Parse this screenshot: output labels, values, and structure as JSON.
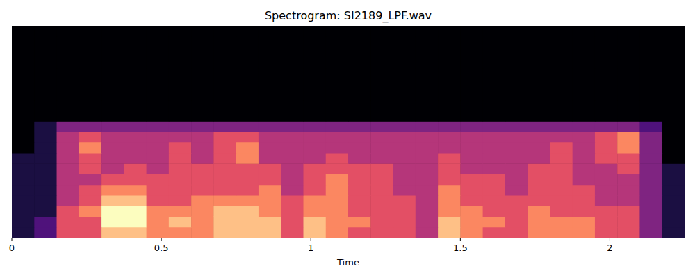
{
  "chart_data": {
    "type": "heatmap",
    "title": "Spectrogram: SI2189_LPF.wav",
    "x_label": "Time",
    "xlim": [
      0,
      2.25
    ],
    "xticks": [
      0,
      0.5,
      1,
      1.5,
      2
    ],
    "ylim": [
      0,
      20
    ],
    "tick_labels": "x",
    "color": "magma",
    "cells": [
      [
        1,
        2,
        5,
        5,
        7,
        7,
        6,
        6,
        6,
        7,
        7,
        7,
        5,
        7,
        6,
        5,
        5,
        5,
        4,
        7,
        6,
        5,
        5,
        6,
        6,
        6,
        5,
        5,
        3,
        1
      ],
      [
        1,
        2,
        5,
        5,
        8,
        8,
        6,
        7,
        6,
        7,
        7,
        7,
        5,
        7,
        6,
        6,
        5,
        5,
        4,
        7,
        6,
        6,
        5,
        6,
        6,
        6,
        5,
        5,
        3,
        1
      ],
      [
        1,
        1,
        5,
        6,
        8,
        8,
        6,
        6,
        6,
        7,
        7,
        6,
        5,
        6,
        6,
        5,
        5,
        5,
        4,
        6,
        6,
        5,
        5,
        6,
        5,
        5,
        5,
        5,
        3,
        1
      ],
      [
        1,
        1,
        4,
        5,
        7,
        7,
        5,
        5,
        6,
        6,
        6,
        6,
        5,
        6,
        6,
        5,
        5,
        5,
        4,
        6,
        5,
        5,
        5,
        5,
        5,
        5,
        4,
        4,
        3,
        1
      ],
      [
        1,
        1,
        4,
        5,
        6,
        6,
        5,
        5,
        5,
        5,
        5,
        6,
        4,
        5,
        6,
        5,
        5,
        4,
        4,
        6,
        5,
        5,
        4,
        5,
        5,
        5,
        4,
        4,
        3,
        1
      ],
      [
        1,
        1,
        4,
        4,
        5,
        5,
        5,
        5,
        5,
        5,
        5,
        5,
        4,
        5,
        6,
        5,
        5,
        4,
        4,
        5,
        5,
        5,
        4,
        5,
        5,
        4,
        4,
        4,
        3,
        1
      ],
      [
        1,
        1,
        4,
        5,
        4,
        5,
        4,
        5,
        5,
        5,
        5,
        5,
        4,
        5,
        5,
        5,
        5,
        4,
        4,
        5,
        4,
        4,
        4,
        5,
        5,
        4,
        4,
        5,
        3,
        1
      ],
      [
        1,
        1,
        4,
        5,
        4,
        4,
        4,
        5,
        4,
        5,
        6,
        4,
        4,
        4,
        5,
        4,
        4,
        4,
        4,
        5,
        4,
        4,
        4,
        4,
        5,
        4,
        5,
        5,
        3,
        0
      ],
      [
        0,
        1,
        4,
        6,
        4,
        4,
        4,
        5,
        4,
        5,
        6,
        4,
        4,
        4,
        4,
        4,
        4,
        4,
        4,
        4,
        4,
        4,
        4,
        4,
        5,
        4,
        5,
        6,
        3,
        0
      ],
      [
        0,
        1,
        4,
        5,
        4,
        4,
        4,
        4,
        4,
        5,
        5,
        4,
        4,
        4,
        4,
        4,
        4,
        4,
        4,
        4,
        4,
        4,
        4,
        4,
        4,
        4,
        5,
        6,
        3,
        0
      ],
      [
        0,
        1,
        3,
        3,
        3,
        3,
        3,
        3,
        3,
        3,
        3,
        3,
        3,
        3,
        3,
        3,
        3,
        3,
        3,
        3,
        3,
        3,
        3,
        3,
        3,
        3,
        3,
        3,
        2,
        0
      ],
      [
        0,
        0,
        0,
        0,
        0,
        0,
        0,
        0,
        0,
        0,
        0,
        0,
        0,
        0,
        0,
        0,
        0,
        0,
        0,
        0,
        0,
        0,
        0,
        0,
        0,
        0,
        0,
        0,
        0,
        0
      ],
      [
        0,
        0,
        0,
        0,
        0,
        0,
        0,
        0,
        0,
        0,
        0,
        0,
        0,
        0,
        0,
        0,
        0,
        0,
        0,
        0,
        0,
        0,
        0,
        0,
        0,
        0,
        0,
        0,
        0,
        0
      ],
      [
        0,
        0,
        0,
        0,
        0,
        0,
        0,
        0,
        0,
        0,
        0,
        0,
        0,
        0,
        0,
        0,
        0,
        0,
        0,
        0,
        0,
        0,
        0,
        0,
        0,
        0,
        0,
        0,
        0,
        0
      ],
      [
        0,
        0,
        0,
        0,
        0,
        0,
        0,
        0,
        0,
        0,
        0,
        0,
        0,
        0,
        0,
        0,
        0,
        0,
        0,
        0,
        0,
        0,
        0,
        0,
        0,
        0,
        0,
        0,
        0,
        0
      ],
      [
        0,
        0,
        0,
        0,
        0,
        0,
        0,
        0,
        0,
        0,
        0,
        0,
        0,
        0,
        0,
        0,
        0,
        0,
        0,
        0,
        0,
        0,
        0,
        0,
        0,
        0,
        0,
        0,
        0,
        0
      ],
      [
        0,
        0,
        0,
        0,
        0,
        0,
        0,
        0,
        0,
        0,
        0,
        0,
        0,
        0,
        0,
        0,
        0,
        0,
        0,
        0,
        0,
        0,
        0,
        0,
        0,
        0,
        0,
        0,
        0,
        0
      ],
      [
        0,
        0,
        0,
        0,
        0,
        0,
        0,
        0,
        0,
        0,
        0,
        0,
        0,
        0,
        0,
        0,
        0,
        0,
        0,
        0,
        0,
        0,
        0,
        0,
        0,
        0,
        0,
        0,
        0,
        0
      ],
      [
        0,
        0,
        0,
        0,
        0,
        0,
        0,
        0,
        0,
        0,
        0,
        0,
        0,
        0,
        0,
        0,
        0,
        0,
        0,
        0,
        0,
        0,
        0,
        0,
        0,
        0,
        0,
        0,
        0,
        0
      ],
      [
        0,
        0,
        0,
        0,
        0,
        0,
        0,
        0,
        0,
        0,
        0,
        0,
        0,
        0,
        0,
        0,
        0,
        0,
        0,
        0,
        0,
        0,
        0,
        0,
        0,
        0,
        0,
        0,
        0,
        0
      ]
    ]
  }
}
